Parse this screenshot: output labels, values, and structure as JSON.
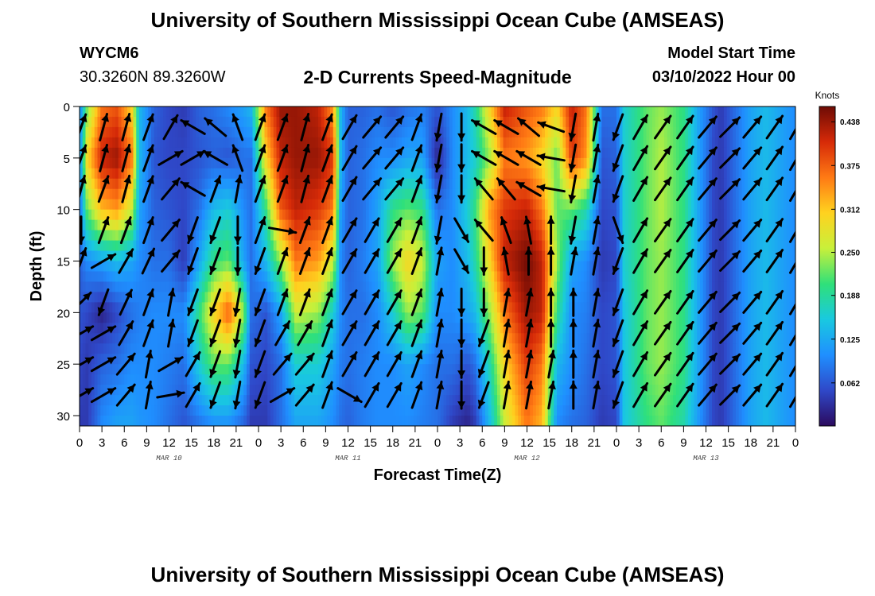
{
  "header": {
    "title": "University of Southern Mississippi Ocean Cube (AMSEAS)",
    "station_id": "WYCM6",
    "station_coords": "30.3260N  89.3260W",
    "plot_title": "2-D Currents Speed-Magnitude",
    "model_start_label": "Model Start Time",
    "model_start_value": "03/10/2022 Hour 00"
  },
  "footer": {
    "title": "University of Southern Mississippi Ocean Cube (AMSEAS)"
  },
  "chart_data": {
    "type": "heatmap",
    "xlabel": "Forecast Time(Z)",
    "ylabel": "Depth (ft)",
    "x_tick_labels": [
      "0",
      "3",
      "6",
      "9",
      "12",
      "15",
      "18",
      "21",
      "0",
      "3",
      "6",
      "9",
      "12",
      "15",
      "18",
      "21",
      "0",
      "3",
      "6",
      "9",
      "12",
      "15",
      "18",
      "21",
      "0",
      "3",
      "6",
      "9",
      "12",
      "15",
      "18",
      "21",
      "0"
    ],
    "date_labels": [
      {
        "label": "MAR 10",
        "hour": 12
      },
      {
        "label": "MAR 11",
        "hour": 36
      },
      {
        "label": "MAR 12",
        "hour": 60
      },
      {
        "label": "MAR 13",
        "hour": 84
      }
    ],
    "xlim_hours": [
      0,
      96
    ],
    "y_ticks": [
      0,
      5,
      10,
      15,
      20,
      25,
      30
    ],
    "ylim": [
      0,
      31
    ],
    "y_inverted": true,
    "colorbar": {
      "unit": "Knots",
      "ticks": [
        "0.438",
        "0.375",
        "0.312",
        "0.250",
        "0.188",
        "0.125",
        "0.062"
      ],
      "tick_values": [
        0.438,
        0.375,
        0.312,
        0.25,
        0.188,
        0.125,
        0.062
      ],
      "range": [
        0,
        0.46
      ],
      "colors": [
        "#2b0a5e",
        "#2f48c8",
        "#1f8fff",
        "#19c9e0",
        "#2fe07a",
        "#c8f03a",
        "#ffd21f",
        "#ff7a14",
        "#d62a08",
        "#6e0b05"
      ]
    },
    "speed_columns": [
      {
        "hour": 0,
        "values": [
          0.09,
          0.09,
          0.08,
          0.07,
          0.06,
          0.05,
          0.04
        ]
      },
      {
        "hour": 1,
        "values": [
          0.22,
          0.3,
          0.22,
          0.1,
          0.05,
          0.04,
          0.04
        ]
      },
      {
        "hour": 3,
        "values": [
          0.36,
          0.42,
          0.32,
          0.12,
          0.02,
          0.07,
          0.1
        ]
      },
      {
        "hour": 5,
        "values": [
          0.38,
          0.44,
          0.34,
          0.14,
          0.05,
          0.08,
          0.12
        ]
      },
      {
        "hour": 7,
        "values": [
          0.3,
          0.36,
          0.26,
          0.12,
          0.08,
          0.1,
          0.12
        ]
      },
      {
        "hour": 8,
        "values": [
          0.14,
          0.14,
          0.12,
          0.1,
          0.09,
          0.1,
          0.11
        ]
      },
      {
        "hour": 10,
        "values": [
          0.07,
          0.06,
          0.07,
          0.08,
          0.1,
          0.1,
          0.1
        ]
      },
      {
        "hour": 12,
        "values": [
          0.05,
          0.05,
          0.06,
          0.08,
          0.1,
          0.09,
          0.08
        ]
      },
      {
        "hour": 14,
        "values": [
          0.04,
          0.05,
          0.05,
          0.04,
          0.1,
          0.08,
          0.06
        ]
      },
      {
        "hour": 16,
        "values": [
          0.07,
          0.06,
          0.08,
          0.12,
          0.2,
          0.16,
          0.08
        ]
      },
      {
        "hour": 18,
        "values": [
          0.08,
          0.07,
          0.14,
          0.2,
          0.3,
          0.22,
          0.1
        ]
      },
      {
        "hour": 20,
        "values": [
          0.1,
          0.06,
          0.16,
          0.22,
          0.38,
          0.22,
          0.1
        ]
      },
      {
        "hour": 22,
        "values": [
          0.12,
          0.08,
          0.1,
          0.12,
          0.24,
          0.14,
          0.07
        ]
      },
      {
        "hour": 23,
        "values": [
          0.14,
          0.08,
          0.08,
          0.08,
          0.08,
          0.06,
          0.04
        ]
      },
      {
        "hour": 25,
        "values": [
          0.36,
          0.3,
          0.2,
          0.14,
          0.06,
          0.05,
          0.04
        ]
      },
      {
        "hour": 27,
        "values": [
          0.44,
          0.42,
          0.38,
          0.24,
          0.12,
          0.08,
          0.08
        ]
      },
      {
        "hour": 29,
        "values": [
          0.44,
          0.44,
          0.42,
          0.36,
          0.26,
          0.16,
          0.12
        ]
      },
      {
        "hour": 32,
        "values": [
          0.42,
          0.44,
          0.4,
          0.34,
          0.24,
          0.16,
          0.12
        ]
      },
      {
        "hour": 34,
        "values": [
          0.34,
          0.4,
          0.36,
          0.26,
          0.16,
          0.12,
          0.1
        ]
      },
      {
        "hour": 35,
        "values": [
          0.14,
          0.14,
          0.12,
          0.1,
          0.1,
          0.09,
          0.08
        ]
      },
      {
        "hour": 36,
        "values": [
          0.07,
          0.07,
          0.07,
          0.07,
          0.08,
          0.08,
          0.07
        ]
      },
      {
        "hour": 38,
        "values": [
          0.07,
          0.08,
          0.08,
          0.09,
          0.08,
          0.09,
          0.09
        ]
      },
      {
        "hour": 40,
        "values": [
          0.08,
          0.1,
          0.12,
          0.12,
          0.1,
          0.1,
          0.1
        ]
      },
      {
        "hour": 42,
        "values": [
          0.06,
          0.1,
          0.2,
          0.24,
          0.16,
          0.1,
          0.1
        ]
      },
      {
        "hour": 44,
        "values": [
          0.08,
          0.12,
          0.22,
          0.3,
          0.24,
          0.12,
          0.1
        ]
      },
      {
        "hour": 46,
        "values": [
          0.09,
          0.12,
          0.2,
          0.26,
          0.22,
          0.1,
          0.09
        ]
      },
      {
        "hour": 48,
        "values": [
          0.06,
          0.02,
          0.08,
          0.12,
          0.1,
          0.08,
          0.08
        ]
      },
      {
        "hour": 50,
        "values": [
          0.1,
          0.1,
          0.1,
          0.1,
          0.1,
          0.08,
          0.04
        ]
      },
      {
        "hour": 52,
        "values": [
          0.14,
          0.14,
          0.16,
          0.14,
          0.12,
          0.06,
          0.02
        ]
      },
      {
        "hour": 53,
        "values": [
          0.18,
          0.16,
          0.2,
          0.18,
          0.14,
          0.08,
          0.04
        ]
      },
      {
        "hour": 55,
        "values": [
          0.3,
          0.24,
          0.34,
          0.3,
          0.24,
          0.18,
          0.14
        ]
      },
      {
        "hour": 57,
        "values": [
          0.42,
          0.36,
          0.4,
          0.42,
          0.36,
          0.3,
          0.26
        ]
      },
      {
        "hour": 60,
        "values": [
          0.38,
          0.34,
          0.42,
          0.46,
          0.44,
          0.4,
          0.36
        ]
      },
      {
        "hour": 62,
        "values": [
          0.36,
          0.3,
          0.36,
          0.42,
          0.42,
          0.36,
          0.32
        ]
      },
      {
        "hour": 64,
        "values": [
          0.3,
          0.22,
          0.22,
          0.24,
          0.2,
          0.14,
          0.1
        ]
      },
      {
        "hour": 66,
        "values": [
          0.42,
          0.4,
          0.22,
          0.12,
          0.1,
          0.1,
          0.08
        ]
      },
      {
        "hour": 68,
        "values": [
          0.36,
          0.34,
          0.18,
          0.1,
          0.09,
          0.08,
          0.07
        ]
      },
      {
        "hour": 70,
        "values": [
          0.08,
          0.06,
          0.05,
          0.04,
          0.05,
          0.05,
          0.04
        ]
      },
      {
        "hour": 72,
        "values": [
          0.08,
          0.07,
          0.06,
          0.05,
          0.06,
          0.06,
          0.05
        ]
      },
      {
        "hour": 73,
        "values": [
          0.16,
          0.16,
          0.16,
          0.16,
          0.15,
          0.15,
          0.15
        ]
      },
      {
        "hour": 76,
        "values": [
          0.22,
          0.22,
          0.22,
          0.22,
          0.22,
          0.22,
          0.2
        ]
      },
      {
        "hour": 78,
        "values": [
          0.24,
          0.25,
          0.25,
          0.24,
          0.24,
          0.24,
          0.22
        ]
      },
      {
        "hour": 81,
        "values": [
          0.2,
          0.2,
          0.2,
          0.2,
          0.2,
          0.2,
          0.18
        ]
      },
      {
        "hour": 83,
        "values": [
          0.12,
          0.12,
          0.12,
          0.12,
          0.12,
          0.12,
          0.11
        ]
      },
      {
        "hour": 85,
        "values": [
          0.06,
          0.05,
          0.05,
          0.05,
          0.05,
          0.05,
          0.05
        ]
      },
      {
        "hour": 86,
        "values": [
          0.04,
          0.04,
          0.04,
          0.04,
          0.04,
          0.04,
          0.04
        ]
      },
      {
        "hour": 88,
        "values": [
          0.08,
          0.08,
          0.08,
          0.08,
          0.08,
          0.08,
          0.08
        ]
      },
      {
        "hour": 90,
        "values": [
          0.12,
          0.12,
          0.12,
          0.12,
          0.12,
          0.12,
          0.12
        ]
      },
      {
        "hour": 92,
        "values": [
          0.14,
          0.14,
          0.14,
          0.14,
          0.14,
          0.14,
          0.14
        ]
      },
      {
        "hour": 94,
        "values": [
          0.12,
          0.12,
          0.12,
          0.12,
          0.12,
          0.12,
          0.12
        ]
      },
      {
        "hour": 96,
        "values": [
          0.1,
          0.1,
          0.1,
          0.1,
          0.1,
          0.1,
          0.1
        ]
      }
    ],
    "speed_depths": [
      0,
      5,
      10,
      15,
      20,
      25,
      31
    ],
    "vector_depths": [
      2,
      5,
      8,
      12,
      15,
      19,
      22,
      25,
      28
    ],
    "vector_directions_deg": [
      {
        "hour": 0,
        "dirs": [
          20,
          20,
          15,
          180,
          20,
          45,
          60,
          60,
          60
        ]
      },
      {
        "hour": 3,
        "dirs": [
          15,
          15,
          20,
          20,
          60,
          200,
          60,
          60,
          60
        ]
      },
      {
        "hour": 6,
        "dirs": [
          15,
          15,
          15,
          20,
          30,
          25,
          30,
          40,
          40
        ]
      },
      {
        "hour": 9,
        "dirs": [
          20,
          20,
          20,
          20,
          25,
          20,
          20,
          10,
          10
        ]
      },
      {
        "hour": 12,
        "dirs": [
          30,
          60,
          40,
          40,
          40,
          10,
          10,
          60,
          80
        ]
      },
      {
        "hour": 15,
        "dirs": [
          300,
          60,
          300,
          200,
          200,
          200,
          200,
          30,
          30
        ]
      },
      {
        "hour": 18,
        "dirs": [
          310,
          300,
          20,
          200,
          200,
          200,
          200,
          200,
          200
        ]
      },
      {
        "hour": 21,
        "dirs": [
          340,
          340,
          10,
          180,
          180,
          190,
          190,
          190,
          190
        ]
      },
      {
        "hour": 24,
        "dirs": [
          20,
          20,
          20,
          20,
          200,
          200,
          200,
          200,
          200
        ]
      },
      {
        "hour": 27,
        "dirs": [
          20,
          20,
          20,
          100,
          20,
          20,
          30,
          40,
          60
        ]
      },
      {
        "hour": 30,
        "dirs": [
          15,
          15,
          15,
          20,
          20,
          20,
          30,
          40,
          40
        ]
      },
      {
        "hour": 33,
        "dirs": [
          20,
          20,
          20,
          20,
          20,
          20,
          20,
          20,
          20
        ]
      },
      {
        "hour": 36,
        "dirs": [
          30,
          30,
          30,
          30,
          30,
          30,
          30,
          30,
          120
        ]
      },
      {
        "hour": 39,
        "dirs": [
          40,
          40,
          40,
          30,
          30,
          30,
          30,
          30,
          30
        ]
      },
      {
        "hour": 42,
        "dirs": [
          40,
          40,
          40,
          30,
          30,
          30,
          30,
          30,
          30
        ]
      },
      {
        "hour": 45,
        "dirs": [
          20,
          20,
          20,
          20,
          20,
          20,
          20,
          20,
          20
        ]
      },
      {
        "hour": 48,
        "dirs": [
          190,
          190,
          190,
          190,
          10,
          10,
          10,
          10,
          10
        ]
      },
      {
        "hour": 51,
        "dirs": [
          180,
          180,
          180,
          150,
          150,
          180,
          180,
          180,
          180
        ]
      },
      {
        "hour": 54,
        "dirs": [
          300,
          300,
          320,
          320,
          180,
          180,
          200,
          200,
          200
        ]
      },
      {
        "hour": 57,
        "dirs": [
          300,
          300,
          320,
          340,
          350,
          10,
          10,
          10,
          10
        ]
      },
      {
        "hour": 60,
        "dirs": [
          310,
          300,
          300,
          350,
          0,
          10,
          10,
          10,
          10
        ]
      },
      {
        "hour": 63,
        "dirs": [
          290,
          280,
          280,
          0,
          0,
          0,
          0,
          10,
          10
        ]
      },
      {
        "hour": 66,
        "dirs": [
          190,
          190,
          190,
          190,
          10,
          0,
          0,
          0,
          0
        ]
      },
      {
        "hour": 69,
        "dirs": [
          10,
          10,
          10,
          10,
          10,
          10,
          10,
          10,
          10
        ]
      },
      {
        "hour": 72,
        "dirs": [
          200,
          200,
          200,
          160,
          200,
          200,
          200,
          200,
          200
        ]
      },
      {
        "hour": 75,
        "dirs": [
          30,
          30,
          30,
          30,
          30,
          30,
          30,
          30,
          30
        ]
      },
      {
        "hour": 78,
        "dirs": [
          35,
          35,
          35,
          35,
          35,
          35,
          35,
          35,
          35
        ]
      },
      {
        "hour": 81,
        "dirs": [
          35,
          35,
          35,
          35,
          35,
          35,
          35,
          35,
          35
        ]
      },
      {
        "hour": 84,
        "dirs": [
          40,
          40,
          40,
          40,
          40,
          40,
          40,
          40,
          40
        ]
      },
      {
        "hour": 87,
        "dirs": [
          45,
          45,
          45,
          45,
          45,
          45,
          45,
          45,
          45
        ]
      },
      {
        "hour": 90,
        "dirs": [
          40,
          40,
          40,
          40,
          40,
          40,
          40,
          40,
          40
        ]
      },
      {
        "hour": 93,
        "dirs": [
          35,
          35,
          35,
          35,
          35,
          35,
          35,
          35,
          35
        ]
      },
      {
        "hour": 96,
        "dirs": [
          30,
          30,
          30,
          30,
          30,
          30,
          30,
          30,
          30
        ]
      }
    ]
  }
}
